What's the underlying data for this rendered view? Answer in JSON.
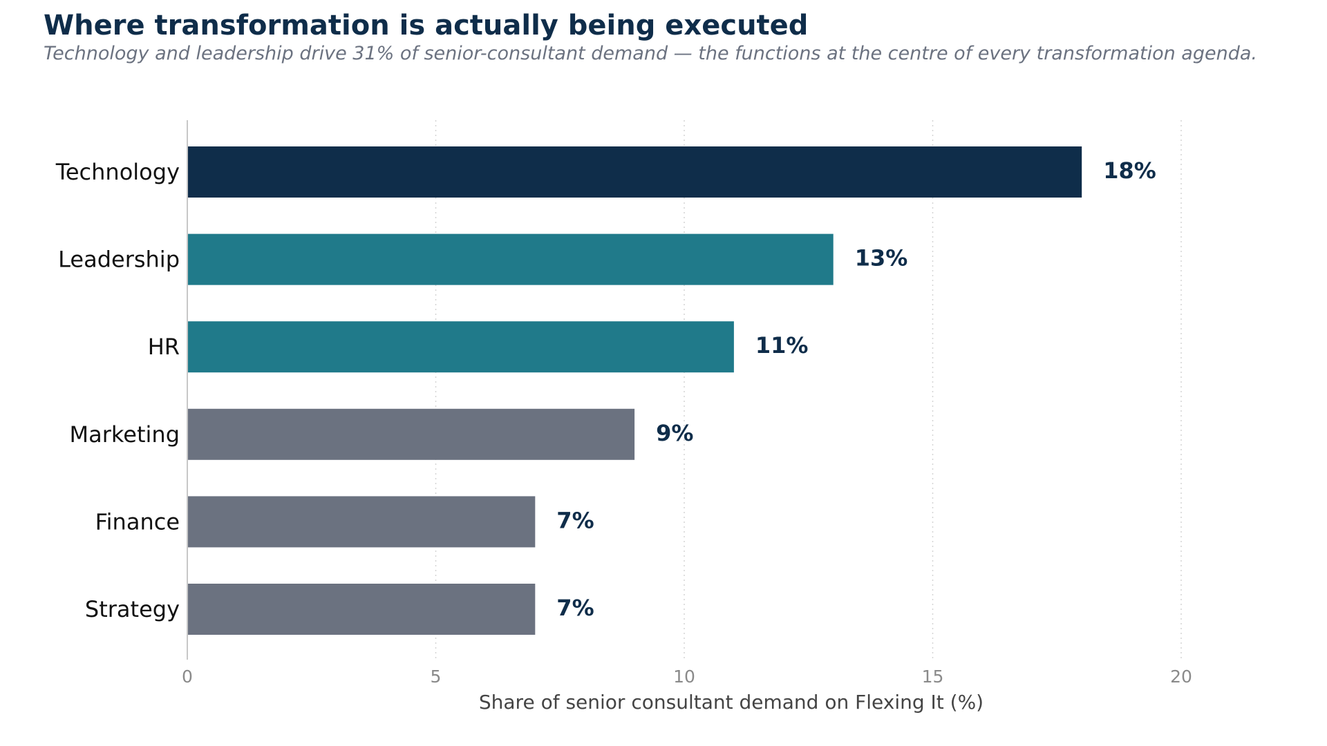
{
  "header": {
    "title": "Where transformation is actually being executed",
    "subtitle": "Technology and leadership drive 31% of senior-consultant demand — the functions at the centre of every transformation agenda."
  },
  "chart_data": {
    "type": "bar",
    "orientation": "horizontal",
    "categories": [
      "Technology",
      "Leadership",
      "HR",
      "Marketing",
      "Finance",
      "Strategy"
    ],
    "values": [
      18,
      13,
      11,
      9,
      7,
      7
    ],
    "value_labels": [
      "18%",
      "13%",
      "11%",
      "9%",
      "7%",
      "7%"
    ],
    "colors": [
      "#0f2d4a",
      "#207a8a",
      "#207a8a",
      "#6b7280",
      "#6b7280",
      "#6b7280"
    ],
    "xlabel": "Share of senior consultant demand on Flexing It (%)",
    "ylabel": "",
    "xlim": [
      0,
      22
    ],
    "xticks": [
      0,
      5,
      10,
      15,
      20
    ],
    "xtick_labels": [
      "0",
      "5",
      "10",
      "15",
      "20"
    ],
    "grid": "vertical dotted",
    "legend": "none"
  }
}
